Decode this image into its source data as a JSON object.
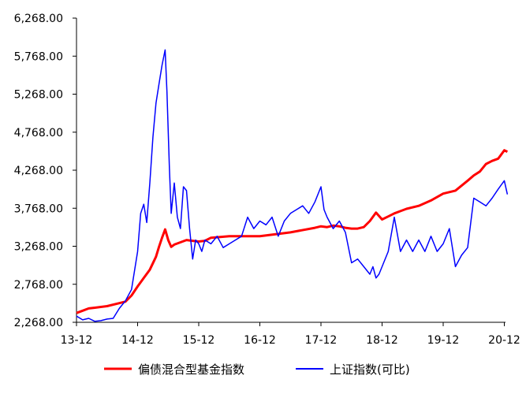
{
  "chart_data": {
    "type": "line",
    "title": "",
    "xlabel": "",
    "ylabel": "",
    "ylim": [
      2268,
      6268
    ],
    "y_ticks": [
      "2,268.00",
      "2,768.00",
      "3,268.00",
      "3,768.00",
      "4,268.00",
      "4,768.00",
      "5,268.00",
      "5,768.00",
      "6,268.00"
    ],
    "y_tick_values": [
      2268,
      2768,
      3268,
      3768,
      4268,
      4768,
      5268,
      5768,
      6268
    ],
    "x_ticks": [
      "13-12",
      "14-12",
      "15-12",
      "16-12",
      "17-12",
      "18-12",
      "19-12",
      "20-12"
    ],
    "x_range": [
      0,
      7.05
    ],
    "legend_position": "bottom",
    "grid": false,
    "series": [
      {
        "name": "偏债混合型基金指数",
        "color": "#ff0000",
        "x": [
          0,
          0.1,
          0.2,
          0.3,
          0.5,
          0.7,
          0.8,
          0.9,
          1.0,
          1.1,
          1.2,
          1.3,
          1.35,
          1.4,
          1.45,
          1.5,
          1.55,
          1.6,
          1.7,
          1.8,
          1.9,
          2.0,
          2.1,
          2.2,
          2.5,
          3.0,
          3.5,
          3.9,
          4.0,
          4.1,
          4.2,
          4.3,
          4.4,
          4.5,
          4.6,
          4.7,
          4.8,
          4.9,
          5.0,
          5.1,
          5.2,
          5.4,
          5.6,
          5.8,
          6.0,
          6.2,
          6.4,
          6.5,
          6.6,
          6.7,
          6.8,
          6.9,
          7.0,
          7.05
        ],
        "y": [
          2390,
          2420,
          2450,
          2460,
          2480,
          2520,
          2540,
          2620,
          2740,
          2850,
          2960,
          3130,
          3260,
          3380,
          3490,
          3350,
          3260,
          3290,
          3320,
          3350,
          3340,
          3330,
          3340,
          3380,
          3400,
          3400,
          3450,
          3510,
          3530,
          3520,
          3540,
          3530,
          3510,
          3500,
          3500,
          3520,
          3600,
          3710,
          3620,
          3660,
          3700,
          3760,
          3800,
          3870,
          3960,
          4000,
          4130,
          4200,
          4250,
          4350,
          4390,
          4420,
          4530,
          4510
        ]
      },
      {
        "name": "上证指数(可比)",
        "color": "#0000ff",
        "x": [
          0,
          0.1,
          0.2,
          0.3,
          0.4,
          0.5,
          0.6,
          0.7,
          0.8,
          0.9,
          1.0,
          1.05,
          1.1,
          1.15,
          1.2,
          1.25,
          1.3,
          1.35,
          1.4,
          1.45,
          1.48,
          1.52,
          1.55,
          1.6,
          1.65,
          1.7,
          1.75,
          1.8,
          1.85,
          1.9,
          1.95,
          2.0,
          2.05,
          2.1,
          2.2,
          2.3,
          2.4,
          2.5,
          2.6,
          2.7,
          2.8,
          2.9,
          3.0,
          3.1,
          3.2,
          3.3,
          3.4,
          3.5,
          3.6,
          3.7,
          3.8,
          3.9,
          4.0,
          4.05,
          4.1,
          4.2,
          4.3,
          4.4,
          4.5,
          4.6,
          4.7,
          4.8,
          4.85,
          4.9,
          4.95,
          5.0,
          5.1,
          5.2,
          5.3,
          5.4,
          5.5,
          5.6,
          5.7,
          5.8,
          5.9,
          6.0,
          6.1,
          6.2,
          6.3,
          6.4,
          6.5,
          6.6,
          6.7,
          6.8,
          6.9,
          7.0,
          7.05
        ],
        "y": [
          2350,
          2300,
          2320,
          2280,
          2290,
          2310,
          2320,
          2450,
          2550,
          2700,
          3200,
          3700,
          3820,
          3580,
          4100,
          4700,
          5150,
          5400,
          5650,
          5850,
          5300,
          4300,
          3700,
          4100,
          3650,
          3500,
          4050,
          4000,
          3500,
          3100,
          3350,
          3300,
          3200,
          3350,
          3300,
          3400,
          3250,
          3300,
          3350,
          3400,
          3650,
          3500,
          3600,
          3550,
          3650,
          3400,
          3600,
          3700,
          3750,
          3800,
          3700,
          3850,
          4050,
          3750,
          3650,
          3500,
          3600,
          3450,
          3050,
          3100,
          3000,
          2900,
          3000,
          2850,
          2900,
          3000,
          3200,
          3650,
          3200,
          3350,
          3200,
          3350,
          3200,
          3400,
          3200,
          3300,
          3500,
          3000,
          3150,
          3250,
          3900,
          3850,
          3800,
          3900,
          4020,
          4130,
          3950
        ]
      }
    ]
  }
}
